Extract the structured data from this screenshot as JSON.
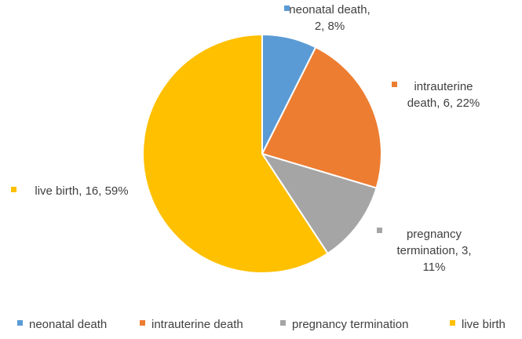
{
  "chart_data": {
    "type": "pie",
    "slices": [
      {
        "label": "neonatal death",
        "value": 2,
        "percent": "8%",
        "color": "#5B9BD5",
        "data_label_lines": [
          "neonatal death,",
          "2, 8%"
        ]
      },
      {
        "label": "intrauterine death",
        "value": 6,
        "percent": "22%",
        "color": "#ED7D31",
        "data_label_lines": [
          "intrauterine",
          "death, 6, 22%"
        ]
      },
      {
        "label": "pregnancy termination",
        "value": 3,
        "percent": "11%",
        "color": "#A5A5A5",
        "data_label_lines": [
          "pregnancy",
          "termination, 3,",
          "11%"
        ]
      },
      {
        "label": "live birth",
        "value": 16,
        "percent": "59%",
        "color": "#FFC000",
        "data_label_lines": [
          "live birth, 16, 59%"
        ]
      }
    ],
    "legend": {
      "position": "bottom",
      "entries": [
        "neonatal death",
        "intrauterine death",
        "pregnancy termination",
        "live birth"
      ]
    }
  }
}
